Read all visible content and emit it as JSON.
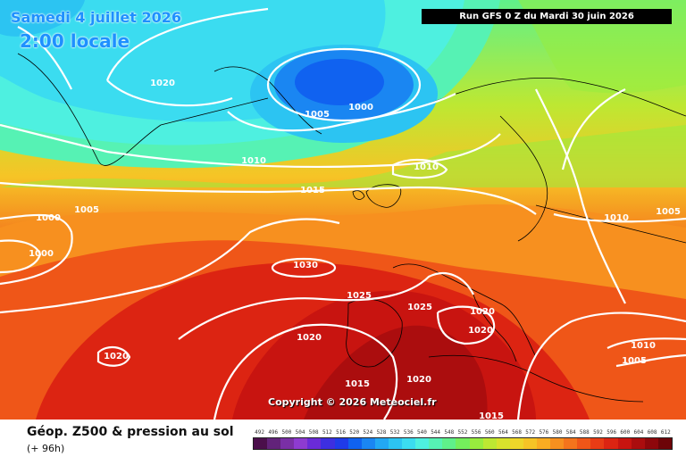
{
  "header": {
    "date": "Samedi 4 juillet 2026",
    "local_time": "2:00 locale",
    "run_info": "Run GFS 0 Z du Mardi 30 juin 2026"
  },
  "footer": {
    "variable_title": "Géop. Z500 & pression au sol",
    "forecast_hour": "(+ 96h)",
    "copyright": "Copyright © 2026 Meteociel.fr"
  },
  "legend": {
    "values": [
      "492",
      "496",
      "500",
      "504",
      "508",
      "512",
      "516",
      "520",
      "524",
      "528",
      "532",
      "536",
      "540",
      "544",
      "548",
      "552",
      "556",
      "560",
      "564",
      "568",
      "572",
      "576",
      "580",
      "584",
      "588",
      "592",
      "596",
      "600",
      "604",
      "608",
      "612"
    ],
    "colors": [
      "#4b0f4b",
      "#62237a",
      "#7a2fa6",
      "#8e3bd1",
      "#6a2bd8",
      "#3d2fe0",
      "#1f3be8",
      "#1062f0",
      "#1a86f2",
      "#22a8f3",
      "#2cc4f2",
      "#3bdcf0",
      "#4ef0e0",
      "#56f2b4",
      "#5ff08a",
      "#74ee5c",
      "#98ec3e",
      "#bde832",
      "#d8e22c",
      "#eed62a",
      "#f6c426",
      "#f9ac22",
      "#f7901f",
      "#f4741c",
      "#ef5618",
      "#e83c15",
      "#dc2412",
      "#c81410",
      "#ab0d0e",
      "#8e070b",
      "#6d0408"
    ]
  },
  "map": {
    "pressure_labels": [
      {
        "text": "1020"
      },
      {
        "text": "1005"
      },
      {
        "text": "1000"
      },
      {
        "text": "1010"
      },
      {
        "text": "1010"
      },
      {
        "text": "1015"
      },
      {
        "text": "1000"
      },
      {
        "text": "1005"
      },
      {
        "text": "1000"
      },
      {
        "text": "1030"
      },
      {
        "text": "1025"
      },
      {
        "text": "1025"
      },
      {
        "text": "1020"
      },
      {
        "text": "1020"
      },
      {
        "text": "1020"
      },
      {
        "text": "1020"
      },
      {
        "text": "1020"
      },
      {
        "text": "1015"
      },
      {
        "text": "1015"
      },
      {
        "text": "1010"
      },
      {
        "text": "1005"
      },
      {
        "text": "1010"
      },
      {
        "text": "1005"
      }
    ]
  }
}
